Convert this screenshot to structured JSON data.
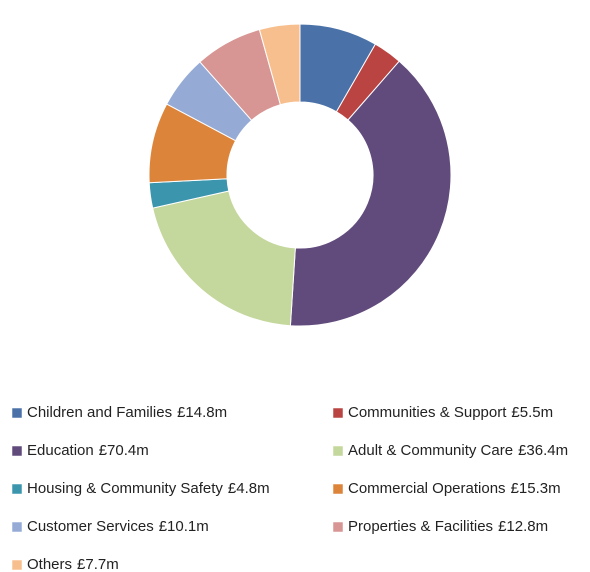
{
  "chart_data": {
    "type": "donut",
    "categories": [
      "Children and Families",
      "Communities & Support",
      "Education",
      "Adult & Community Care",
      "Housing & Community Safety",
      "Commercial Operations",
      "Customer Services",
      "Properties & Facilities",
      "Others"
    ],
    "values": [
      14.8,
      5.5,
      70.4,
      36.4,
      4.8,
      15.3,
      10.1,
      12.8,
      7.7
    ],
    "value_labels": [
      "£14.8m",
      "£5.5m",
      "£70.4m",
      "£36.4m",
      "£4.8m",
      "£15.3m",
      "£10.1m",
      "£12.8m",
      "£7.7m"
    ],
    "colors": [
      "#4a72a8",
      "#b94441",
      "#614a7c",
      "#c4d79c",
      "#3a95ad",
      "#dd843b",
      "#95abd5",
      "#d79593",
      "#f8bf8e"
    ]
  }
}
